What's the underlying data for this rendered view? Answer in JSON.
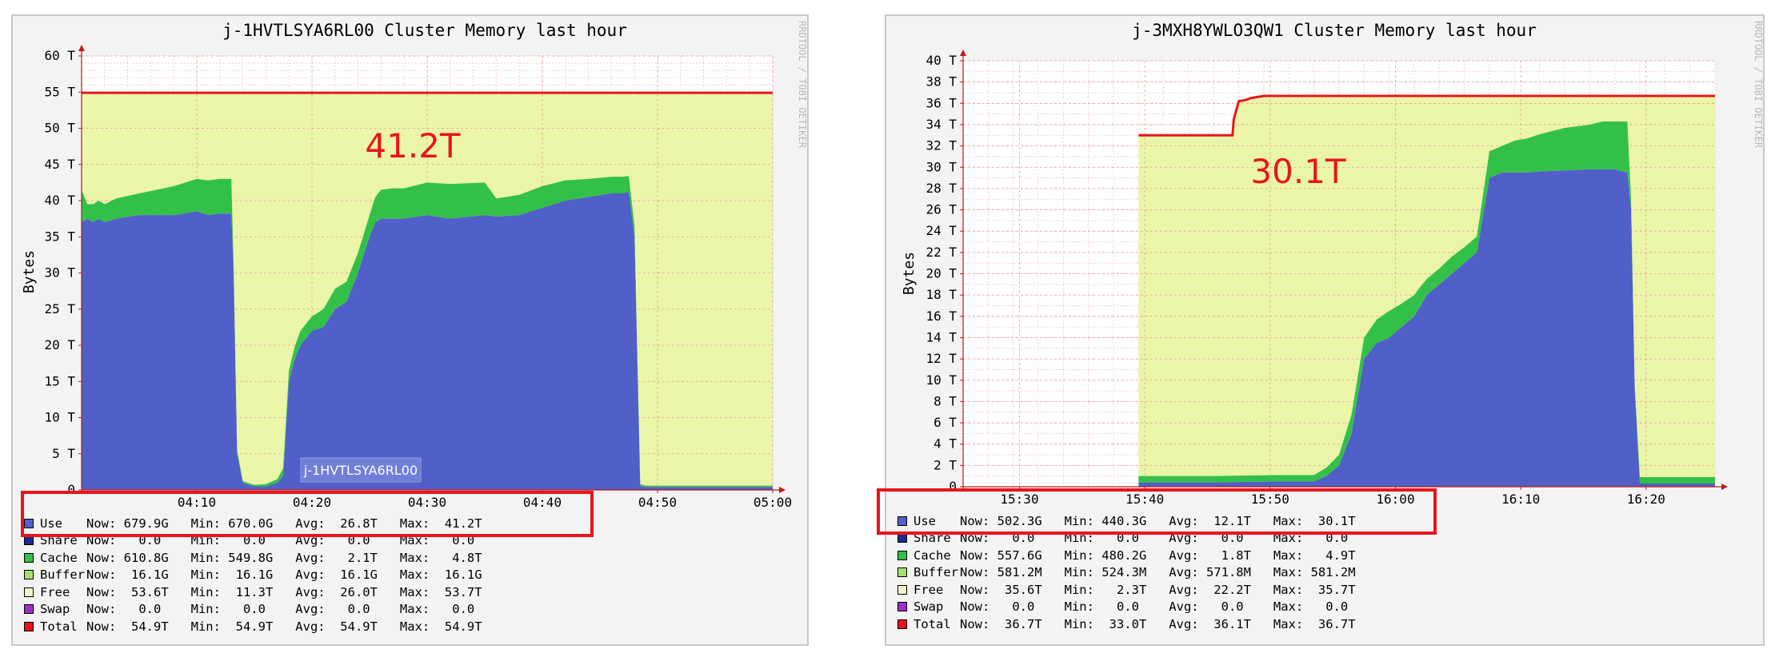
{
  "chart_data": [
    {
      "type": "area",
      "title": "j-1HVTLSYA6RL00 Cluster Memory last hour",
      "ylabel": "Bytes",
      "watermark": "RRDTOOL / TOBI OETIKER",
      "annotation": "41.2T",
      "host_label": "j-1HVTLSYA6RL00",
      "y_unit": "T",
      "ylim": [
        0,
        60
      ],
      "y_ticks": [
        0,
        5,
        10,
        15,
        20,
        25,
        30,
        35,
        40,
        45,
        50,
        55,
        60
      ],
      "y_tick_labels": [
        "0",
        "5 T",
        "10 T",
        "15 T",
        "20 T",
        "25 T",
        "30 T",
        "35 T",
        "40 T",
        "45 T",
        "50 T",
        "55 T",
        "60 T"
      ],
      "xlim": [
        0,
        60
      ],
      "x_ticks": [
        10,
        20,
        30,
        40,
        50,
        60
      ],
      "x_tick_labels": [
        "04:10",
        "04:20",
        "04:30",
        "04:40",
        "04:50",
        "05:00"
      ],
      "colors": {
        "use": "#5060c8",
        "cache": "#33c048",
        "free": "#eaf5a8",
        "total": "#e8141c"
      },
      "series": [
        {
          "name": "Use",
          "x": [
            0,
            0.5,
            1,
            1.5,
            2,
            3,
            5,
            8,
            10,
            11,
            12,
            13,
            13.2,
            13.5,
            14,
            15,
            16,
            17,
            17.5,
            18,
            18.5,
            19,
            20,
            21,
            22,
            23,
            24,
            25,
            25.5,
            26,
            27,
            28,
            30,
            32,
            35,
            36,
            38,
            40,
            42,
            44,
            46,
            47,
            47.5,
            48,
            48.5,
            49,
            50,
            55,
            60
          ],
          "values": [
            37,
            37.5,
            37,
            37.5,
            37,
            37.5,
            38,
            38,
            38.5,
            38,
            38.2,
            38.2,
            30,
            5,
            1,
            0.5,
            0.5,
            1,
            2,
            15,
            18,
            20,
            22,
            22.5,
            25,
            26,
            30,
            35,
            37,
            37.5,
            37.5,
            37.5,
            38,
            37.5,
            38,
            37.8,
            38,
            39,
            40,
            40.5,
            41,
            41,
            41.2,
            35,
            0.5,
            0.4,
            0.4,
            0.4,
            0.4
          ]
        },
        {
          "name": "Cache",
          "x": [
            0,
            0.5,
            1,
            1.5,
            2,
            3,
            5,
            8,
            10,
            11,
            12,
            13,
            13.2,
            13.5,
            14,
            15,
            16,
            17,
            17.5,
            18,
            18.5,
            19,
            20,
            21,
            22,
            23,
            24,
            25,
            25.5,
            26,
            27,
            28,
            30,
            32,
            35,
            36,
            38,
            40,
            42,
            44,
            46,
            47,
            47.5,
            48,
            48.5,
            49,
            50,
            55,
            60
          ],
          "values": [
            4.5,
            2,
            2.5,
            2.5,
            2.5,
            2.8,
            3,
            4,
            4.5,
            4.8,
            4.8,
            4.8,
            1,
            0.5,
            0.2,
            0.2,
            0.3,
            0.5,
            1,
            1.5,
            1.8,
            2,
            2,
            2.5,
            2.8,
            2.8,
            2.8,
            3,
            3.5,
            4,
            4.2,
            4.2,
            4.5,
            4.8,
            4.5,
            2.5,
            2.8,
            3,
            2.8,
            2.5,
            2.3,
            2.3,
            2.2,
            1.5,
            0.3,
            0.2,
            0.2,
            0.2,
            0.2
          ]
        },
        {
          "name": "Total",
          "x": [
            0,
            60
          ],
          "values": [
            54.9,
            54.9
          ]
        }
      ],
      "legend": [
        {
          "name": "Use",
          "stats": "Now: 679.9G   Min: 670.0G   Avg:  26.8T   Max:  41.2T",
          "color": "#5060c8"
        },
        {
          "name": "Share",
          "stats": "Now:   0.0    Min:   0.0    Avg:   0.0    Max:   0.0",
          "color": "#1d2b8c"
        },
        {
          "name": "Cache",
          "stats": "Now: 610.8G   Min: 549.8G   Avg:   2.1T   Max:   4.8T",
          "color": "#33c048"
        },
        {
          "name": "Buffer",
          "stats": "Now:  16.1G   Min:  16.1G   Avg:  16.1G   Max:  16.1G",
          "color": "#a5e26a"
        },
        {
          "name": "Free",
          "stats": "Now:  53.6T   Min:  11.3T   Avg:  26.0T   Max:  53.7T",
          "color": "#f2f2c8"
        },
        {
          "name": "Swap",
          "stats": "Now:   0.0    Min:   0.0    Avg:   0.0    Max:   0.0",
          "color": "#9b30c8"
        },
        {
          "name": "Total",
          "stats": "Now:  54.9T   Min:  54.9T   Avg:  54.9T   Max:  54.9T",
          "color": "#e8141c"
        }
      ]
    },
    {
      "type": "area",
      "title": "j-3MXH8YWLO3QW1 Cluster Memory last hour",
      "ylabel": "Bytes",
      "watermark": "RRDTOOL / TOBI OETIKER",
      "annotation": "30.1T",
      "y_unit": "T",
      "ylim": [
        0,
        40
      ],
      "y_ticks": [
        0,
        2,
        4,
        6,
        8,
        10,
        12,
        14,
        16,
        18,
        20,
        22,
        24,
        26,
        28,
        30,
        32,
        34,
        36,
        38,
        40
      ],
      "y_tick_labels": [
        "0",
        "2 T",
        "4 T",
        "6 T",
        "8 T",
        "10 T",
        "12 T",
        "14 T",
        "16 T",
        "18 T",
        "20 T",
        "22 T",
        "24 T",
        "26 T",
        "28 T",
        "30 T",
        "32 T",
        "34 T",
        "36 T",
        "38 T",
        "40 T"
      ],
      "xlim": [
        0,
        60
      ],
      "x_ticks": [
        4.5,
        14.5,
        24.5,
        34.5,
        44.5,
        54.5
      ],
      "x_tick_labels": [
        "15:30",
        "15:40",
        "15:50",
        "16:00",
        "16:10",
        "16:20"
      ],
      "colors": {
        "use": "#5060c8",
        "cache": "#33c048",
        "free": "#eaf5a8",
        "total": "#e8141c"
      },
      "series": [
        {
          "name": "Use",
          "x": [
            14,
            14.2,
            20,
            25,
            28,
            29,
            30,
            31,
            32,
            33,
            34,
            35,
            36,
            36.5,
            37,
            38,
            39,
            40,
            41,
            42,
            43,
            44,
            45,
            46,
            48,
            50,
            51,
            52,
            53,
            53.3,
            53.6,
            54,
            60
          ],
          "values": [
            0.4,
            0.4,
            0.4,
            0.5,
            0.5,
            1,
            2,
            5,
            12,
            13.5,
            14,
            15,
            16,
            17,
            18,
            19,
            20,
            21,
            22,
            29,
            29.5,
            29.5,
            29.5,
            29.6,
            29.7,
            29.8,
            29.8,
            29.8,
            29.5,
            26,
            9,
            0.3,
            0.3
          ]
        },
        {
          "name": "Cache",
          "x": [
            14,
            14.2,
            20,
            25,
            28,
            29,
            30,
            31,
            32,
            33,
            34,
            35,
            36,
            36.5,
            37,
            38,
            39,
            40,
            41,
            42,
            43,
            44,
            45,
            46,
            48,
            50,
            51,
            52,
            53,
            53.3,
            53.6,
            54,
            60
          ],
          "values": [
            0.6,
            0.6,
            0.6,
            0.6,
            0.6,
            0.8,
            1,
            1.8,
            2,
            2.2,
            2.5,
            2.2,
            2,
            1.8,
            1.5,
            1.5,
            1.6,
            1.5,
            1.5,
            2.5,
            2.5,
            3,
            3.2,
            3.5,
            4,
            4.2,
            4.5,
            4.5,
            4.8,
            1,
            0.5,
            0.6,
            0.6
          ]
        },
        {
          "name": "Total",
          "x": [
            14,
            21.5,
            21.6,
            22,
            22.5,
            23,
            24,
            60
          ],
          "values": [
            33.0,
            33.0,
            34.5,
            36.2,
            36.3,
            36.5,
            36.7,
            36.7
          ]
        }
      ],
      "legend": [
        {
          "name": "Use",
          "stats": "Now: 502.3G   Min: 440.3G   Avg:  12.1T   Max:  30.1T",
          "color": "#5060c8"
        },
        {
          "name": "Share",
          "stats": "Now:   0.0    Min:   0.0    Avg:   0.0    Max:   0.0",
          "color": "#1d2b8c"
        },
        {
          "name": "Cache",
          "stats": "Now: 557.6G   Min: 480.2G   Avg:   1.8T   Max:   4.9T",
          "color": "#33c048"
        },
        {
          "name": "Buffer",
          "stats": "Now: 581.2M   Min: 524.3M   Avg: 571.8M   Max: 581.2M",
          "color": "#a5e26a"
        },
        {
          "name": "Free",
          "stats": "Now:  35.6T   Min:   2.3T   Avg:  22.2T   Max:  35.7T",
          "color": "#f2f2c8"
        },
        {
          "name": "Swap",
          "stats": "Now:   0.0    Min:   0.0    Avg:   0.0    Max:   0.0",
          "color": "#9b30c8"
        },
        {
          "name": "Total",
          "stats": "Now:  36.7T   Min:  33.0T   Avg:  36.1T   Max:  36.7T",
          "color": "#e8141c"
        }
      ]
    }
  ]
}
